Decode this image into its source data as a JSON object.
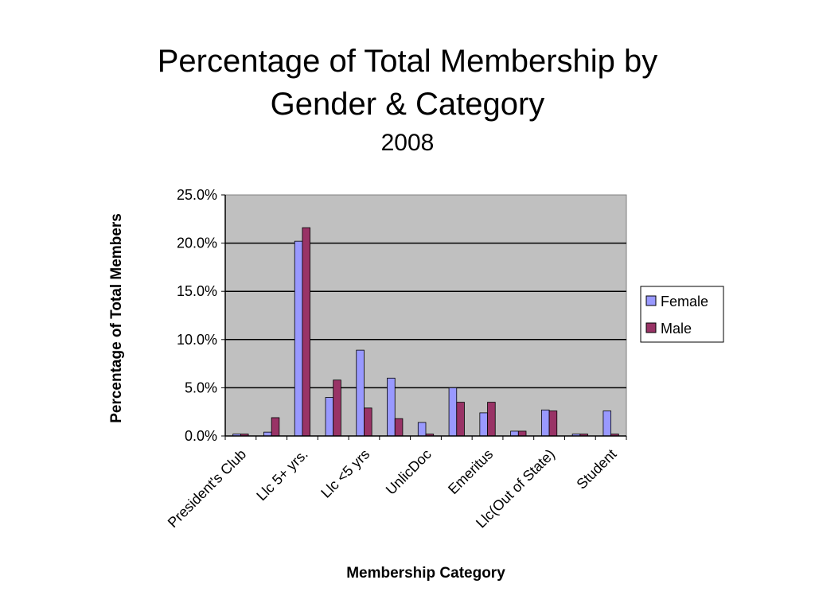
{
  "title": {
    "line1": "Percentage of Total Membership by",
    "line2": "Gender & Category",
    "subtitle": "2008"
  },
  "chart_data": {
    "type": "bar",
    "ylabel": "Percentage of Total Members",
    "xlabel": "Membership Category",
    "ylim": [
      0,
      25
    ],
    "y_ticks": [
      "0.0%",
      "5.0%",
      "10.0%",
      "15.0%",
      "20.0%",
      "25.0%"
    ],
    "grid": true,
    "legend_position": "right",
    "category_count": 13,
    "visible_tick_labels": [
      "President's Club",
      "Llc   5+ yrs.",
      "Llc <5 yrs",
      "UnlicDoc",
      "Emeritus",
      "Llc(Out of State)",
      "Student"
    ],
    "series": [
      {
        "name": "Female",
        "color": "#9999ff",
        "values": [
          0.2,
          0.4,
          20.2,
          4.0,
          8.9,
          6.0,
          1.4,
          5.0,
          2.4,
          0.5,
          2.7,
          0.2,
          2.6
        ]
      },
      {
        "name": "Male",
        "color": "#993366",
        "values": [
          0.2,
          1.9,
          21.6,
          5.8,
          2.9,
          1.8,
          0.2,
          3.5,
          3.5,
          0.5,
          2.6,
          0.2,
          0.2
        ]
      }
    ],
    "colors": {
      "plot_background": "#c0c0c0",
      "gridline": "#000000"
    }
  }
}
